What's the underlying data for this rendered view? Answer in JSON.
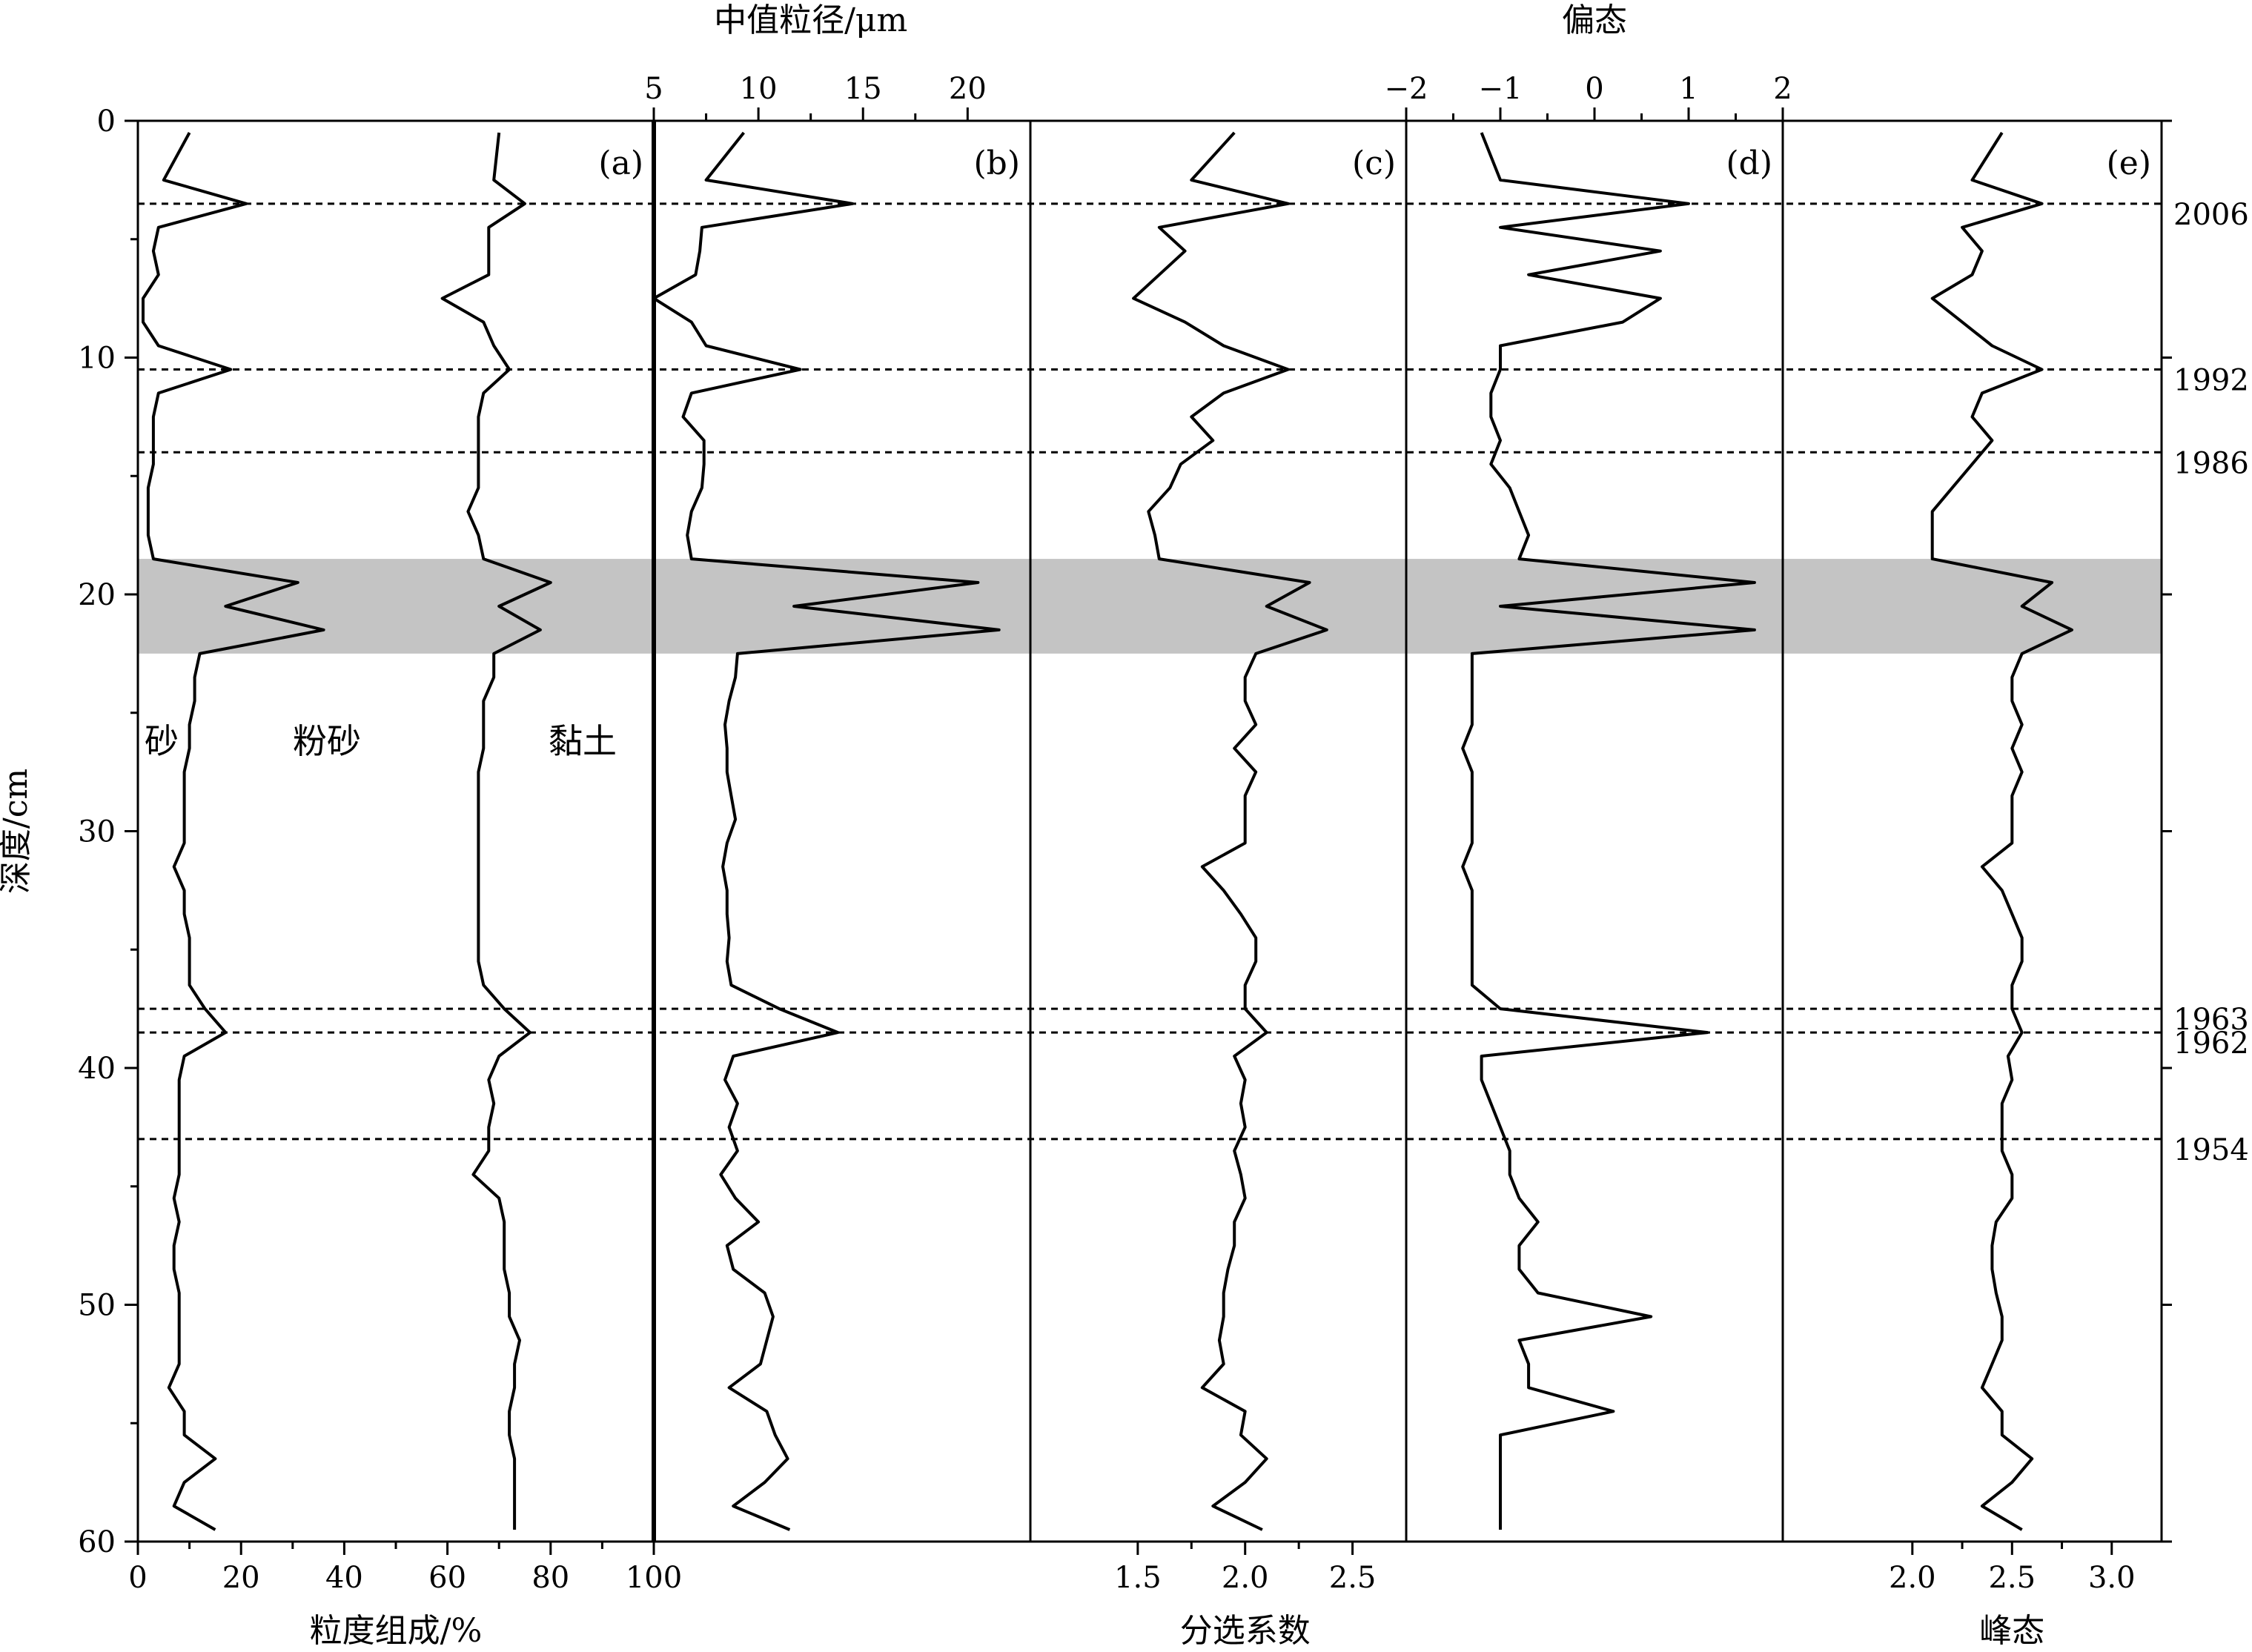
{
  "chart_data": {
    "type": "line",
    "shared_y": {
      "label": "深度/cm",
      "ticks": [
        0,
        10,
        20,
        30,
        40,
        50,
        60
      ],
      "range": [
        0,
        60
      ],
      "inverted": true
    },
    "depth": [
      0.5,
      2.5,
      3.5,
      4.5,
      5.5,
      6.5,
      7.5,
      8.5,
      9.5,
      10.5,
      11.5,
      12.5,
      13.5,
      14.5,
      15.5,
      16.5,
      17.5,
      18.5,
      19.5,
      20.5,
      21.5,
      22.5,
      23.5,
      24.5,
      25.5,
      26.5,
      27.5,
      28.5,
      29.5,
      30.5,
      31.5,
      32.5,
      33.5,
      34.5,
      35.5,
      36.5,
      37.5,
      38.5,
      39.5,
      40.5,
      41.5,
      42.5,
      43.5,
      44.5,
      45.5,
      46.5,
      47.5,
      48.5,
      49.5,
      50.5,
      51.5,
      52.5,
      53.5,
      54.5,
      55.5,
      56.5,
      57.5,
      58.5,
      59.5
    ],
    "highlight_band": [
      18.5,
      22.5
    ],
    "event_lines": [
      {
        "depth": 3.5,
        "label": "2006"
      },
      {
        "depth": 10.5,
        "label": "1992"
      },
      {
        "depth": 14,
        "label": "1986"
      },
      {
        "depth": 37.5,
        "label": "1963"
      },
      {
        "depth": 38.5,
        "label": "1962"
      },
      {
        "depth": 43,
        "label": "1954"
      }
    ],
    "panels": [
      {
        "id": "a",
        "label": "(a)",
        "xlabel": "粒度组成/%",
        "xlabel_pos": "bottom",
        "x_ticks": [
          0,
          20,
          40,
          60,
          80,
          100
        ],
        "xlim": [
          0,
          100
        ],
        "region_labels": [
          "砂",
          "粉砂",
          "黏土"
        ],
        "series": [
          {
            "name": "sand-silt boundary",
            "values": [
              10,
              5,
              21,
              4,
              3,
              4,
              1,
              1,
              4,
              18,
              4,
              3,
              3,
              3,
              2,
              2,
              2,
              3,
              31,
              17,
              36,
              12,
              11,
              11,
              10,
              10,
              9,
              9,
              9,
              9,
              7,
              9,
              9,
              10,
              10,
              10,
              13,
              17,
              9,
              8,
              8,
              8,
              8,
              8,
              7,
              8,
              7,
              7,
              8,
              8,
              8,
              8,
              6,
              9,
              9,
              15,
              9,
              7,
              15
            ]
          },
          {
            "name": "silt-clay boundary",
            "values": [
              70,
              69,
              75,
              68,
              68,
              68,
              59,
              67,
              69,
              72,
              67,
              66,
              66,
              66,
              66,
              64,
              66,
              67,
              80,
              70,
              78,
              69,
              69,
              67,
              67,
              67,
              66,
              66,
              66,
              66,
              66,
              66,
              66,
              66,
              66,
              67,
              71,
              76,
              70,
              68,
              69,
              68,
              68,
              65,
              70,
              71,
              71,
              71,
              72,
              72,
              74,
              73,
              73,
              72,
              72,
              73,
              73,
              73,
              73
            ]
          }
        ]
      },
      {
        "id": "b",
        "label": "(b)",
        "xlabel": "中值粒径/μm",
        "xlabel_pos": "top",
        "x_ticks": [
          5,
          10,
          15,
          20
        ],
        "xlim": [
          5,
          23
        ],
        "series": [
          {
            "name": "中值粒径",
            "values": [
              9.3,
              7.5,
              14.5,
              7.3,
              7.2,
              7,
              5,
              6.8,
              7.5,
              12,
              6.8,
              6.4,
              7.4,
              7.4,
              7.3,
              6.8,
              6.6,
              6.8,
              20.5,
              11.7,
              21.5,
              9,
              8.9,
              8.6,
              8.4,
              8.5,
              8.5,
              8.7,
              8.9,
              8.5,
              8.3,
              8.5,
              8.5,
              8.6,
              8.5,
              8.7,
              11,
              13.8,
              8.8,
              8.4,
              9,
              8.6,
              9,
              8.2,
              8.9,
              10,
              8.5,
              8.8,
              10.3,
              10.7,
              10.4,
              10.1,
              8.6,
              10.4,
              10.8,
              11.4,
              10.3,
              8.8,
              11.5
            ]
          }
        ]
      },
      {
        "id": "c",
        "label": "(c)",
        "xlabel": "分选系数",
        "xlabel_pos": "bottom",
        "x_ticks": [
          1.5,
          2.0,
          2.5
        ],
        "x_tick_labels": [
          "1.5",
          "2.0",
          "2.5"
        ],
        "xlim": [
          1.0,
          2.75
        ],
        "series": [
          {
            "name": "分选系数",
            "values": [
              1.95,
              1.75,
              2.2,
              1.6,
              1.72,
              1.6,
              1.48,
              1.72,
              1.9,
              2.2,
              1.9,
              1.75,
              1.85,
              1.7,
              1.65,
              1.55,
              1.58,
              1.6,
              2.3,
              2.1,
              2.38,
              2.05,
              2.0,
              2.0,
              2.05,
              1.95,
              2.05,
              2.0,
              2.0,
              2.0,
              1.8,
              1.9,
              1.98,
              2.05,
              2.05,
              2.0,
              2.0,
              2.1,
              1.95,
              2.0,
              1.98,
              2.0,
              1.95,
              1.98,
              2.0,
              1.95,
              1.95,
              1.92,
              1.9,
              1.9,
              1.88,
              1.9,
              1.8,
              2.0,
              1.98,
              2.1,
              2.0,
              1.85,
              2.08
            ]
          }
        ]
      },
      {
        "id": "d",
        "label": "(d)",
        "xlabel": "偏态",
        "xlabel_pos": "top",
        "x_ticks": [
          -2,
          -1,
          0,
          1,
          2
        ],
        "x_tick_labels": [
          "−2",
          "−1",
          "0",
          "1",
          "2"
        ],
        "xlim": [
          -2,
          2
        ],
        "series": [
          {
            "name": "偏态",
            "values": [
              -1.2,
              -1.0,
              1.0,
              -1.0,
              0.7,
              -0.7,
              0.7,
              0.3,
              -1.0,
              -1.0,
              -1.1,
              -1.1,
              -1.0,
              -1.1,
              -0.9,
              -0.8,
              -0.7,
              -0.8,
              1.7,
              -1.0,
              1.7,
              -1.3,
              -1.3,
              -1.3,
              -1.3,
              -1.4,
              -1.3,
              -1.3,
              -1.3,
              -1.3,
              -1.4,
              -1.3,
              -1.3,
              -1.3,
              -1.3,
              -1.3,
              -1.0,
              1.2,
              -1.2,
              -1.2,
              -1.1,
              -1.0,
              -0.9,
              -0.9,
              -0.8,
              -0.6,
              -0.8,
              -0.8,
              -0.6,
              0.6,
              -0.8,
              -0.7,
              -0.7,
              0.2,
              -1.0,
              -1.0,
              -1.0,
              -1.0,
              -1.0
            ]
          }
        ]
      },
      {
        "id": "e",
        "label": "(e)",
        "xlabel": "峰态",
        "xlabel_pos": "bottom",
        "x_ticks": [
          2.0,
          2.5,
          3.0
        ],
        "x_tick_labels": [
          "2.0",
          "2.5",
          "3.0"
        ],
        "xlim": [
          1.35,
          3.25
        ],
        "series": [
          {
            "name": "峰态",
            "values": [
              2.45,
              2.3,
              2.65,
              2.25,
              2.35,
              2.3,
              2.1,
              2.25,
              2.4,
              2.65,
              2.35,
              2.3,
              2.4,
              2.3,
              2.2,
              2.1,
              2.1,
              2.1,
              2.7,
              2.55,
              2.8,
              2.55,
              2.5,
              2.5,
              2.55,
              2.5,
              2.55,
              2.5,
              2.5,
              2.5,
              2.35,
              2.45,
              2.5,
              2.55,
              2.55,
              2.5,
              2.5,
              2.55,
              2.48,
              2.5,
              2.45,
              2.45,
              2.45,
              2.5,
              2.5,
              2.42,
              2.4,
              2.4,
              2.42,
              2.45,
              2.45,
              2.4,
              2.35,
              2.45,
              2.45,
              2.6,
              2.5,
              2.35,
              2.55
            ]
          }
        ]
      }
    ]
  }
}
